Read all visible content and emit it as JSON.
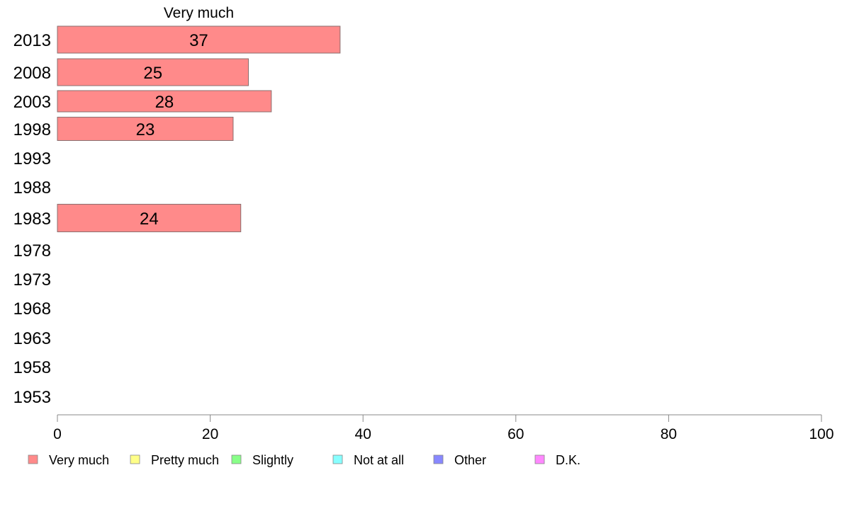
{
  "chart_data": {
    "type": "bar",
    "orientation": "horizontal",
    "title": "Very much",
    "categories": [
      "2013",
      "2008",
      "2003",
      "1998",
      "1993",
      "1988",
      "1983",
      "1978",
      "1973",
      "1968",
      "1963",
      "1958",
      "1953"
    ],
    "series": [
      {
        "name": "Very much",
        "color": "#ff8a8a",
        "values": [
          37,
          25,
          28,
          23,
          null,
          null,
          24,
          null,
          null,
          null,
          null,
          null,
          null
        ],
        "labels": [
          "37",
          "25",
          "28",
          "23",
          "",
          "",
          "24",
          "",
          "",
          "",
          "",
          "",
          ""
        ]
      }
    ],
    "xlim": [
      0,
      100
    ],
    "xticks": [
      "0",
      "20",
      "40",
      "60",
      "80",
      "100"
    ],
    "grid": false,
    "legend_position": "bottom",
    "legend": [
      {
        "label": "Very much",
        "color": "#ff8a8a"
      },
      {
        "label": "Pretty much",
        "color": "#ffff88"
      },
      {
        "label": "Slightly",
        "color": "#88ff88"
      },
      {
        "label": "Not at all",
        "color": "#88ffff"
      },
      {
        "label": "Other",
        "color": "#8888ff"
      },
      {
        "label": "D.K.",
        "color": "#ff88ff"
      }
    ]
  }
}
